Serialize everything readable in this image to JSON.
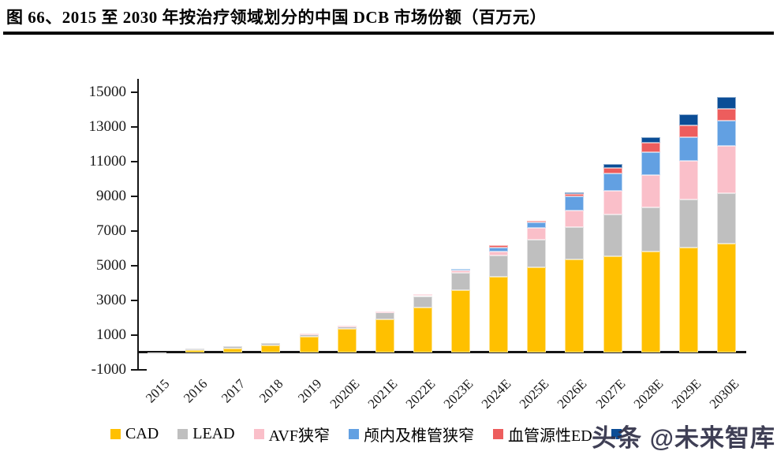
{
  "figure": {
    "title": "图 66、2015 至 2030 年按治疗领域划分的中国 DCB 市场份额（百万元）"
  },
  "watermark": {
    "text": "头条 @未来智库"
  },
  "y_axis": {
    "ticks": [
      15000,
      13000,
      11000,
      9000,
      7000,
      5000,
      3000,
      1000,
      -1000
    ]
  },
  "legend": {
    "items": [
      {
        "label": "CAD",
        "color": "#FFC000"
      },
      {
        "label": "LEAD",
        "color": "#BFBFBF"
      },
      {
        "label": "AVF狭窄",
        "color": "#FABFC9"
      },
      {
        "label": "颅内及椎管狭窄",
        "color": "#62A0E2"
      },
      {
        "label": "血管源性ED",
        "color": "#ED5D5D"
      },
      {
        "label": "",
        "color": "#0B4D96"
      }
    ]
  },
  "chart_data": {
    "type": "bar",
    "stacked": true,
    "title": "2015 至 2030 年按治疗领域划分的中国 DCB 市场份额",
    "unit": "百万元",
    "xlabel": "",
    "ylabel": "",
    "ylim": [
      -1000,
      15000
    ],
    "y_tick_step": 2000,
    "grid": false,
    "legend_position": "bottom",
    "categories": [
      "2015",
      "2016",
      "2017",
      "2018",
      "2019",
      "2020E",
      "2021E",
      "2022E",
      "2023E",
      "2024E",
      "2025E",
      "2026E",
      "2027E",
      "2028E",
      "2029E",
      "2030E"
    ],
    "series": [
      {
        "name": "CAD",
        "color": "#FFC000",
        "values": [
          10,
          120,
          230,
          410,
          930,
          1350,
          1900,
          2600,
          3580,
          4380,
          4900,
          5350,
          5550,
          5800,
          6050,
          6260
        ]
      },
      {
        "name": "LEAD",
        "color": "#BFBFBF",
        "values": [
          5,
          110,
          150,
          120,
          140,
          150,
          400,
          650,
          1030,
          1210,
          1620,
          1890,
          2400,
          2570,
          2790,
          2920
        ]
      },
      {
        "name": "AVF狭窄",
        "color": "#FABFC9",
        "values": [
          0,
          0,
          0,
          0,
          20,
          60,
          50,
          110,
          140,
          210,
          640,
          950,
          1390,
          1840,
          2200,
          2730
        ]
      },
      {
        "name": "颅内及椎管狭窄",
        "color": "#62A0E2",
        "values": [
          0,
          0,
          0,
          0,
          0,
          0,
          0,
          0,
          90,
          240,
          320,
          800,
          990,
          1320,
          1380,
          1470
        ]
      },
      {
        "name": "血管源性ED",
        "color": "#ED5D5D",
        "values": [
          0,
          0,
          0,
          0,
          0,
          0,
          0,
          0,
          0,
          140,
          90,
          150,
          300,
          570,
          670,
          650
        ]
      },
      {
        "name": "",
        "color": "#0B4D96",
        "values": [
          0,
          0,
          0,
          0,
          0,
          0,
          0,
          0,
          0,
          0,
          0,
          110,
          250,
          290,
          650,
          710
        ]
      }
    ]
  }
}
